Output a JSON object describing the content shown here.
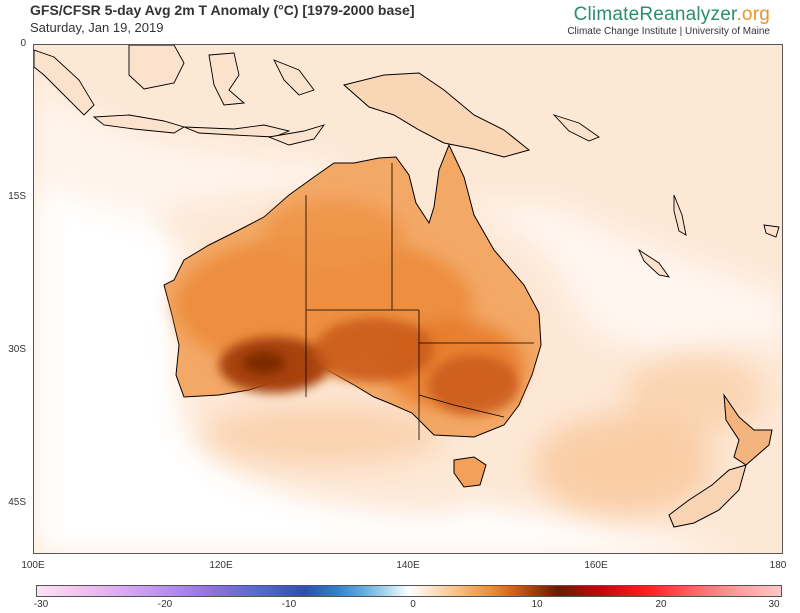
{
  "header": {
    "title": "GFS/CFSR 5-day Avg 2m T Anomaly (°C) [1979-2000 base]",
    "date": "Saturday, Jan 19, 2019"
  },
  "brand": {
    "name_part1": "Climate",
    "name_part2": "Reanalyzer",
    "name_part3": ".org",
    "subtitle": "Climate Change Institute | University of Maine"
  },
  "map": {
    "lat_labels": [
      "0",
      "15S",
      "30S",
      "45S"
    ],
    "lon_labels": [
      "100E",
      "120E",
      "140E",
      "160E",
      "180"
    ]
  },
  "colorbar": {
    "tick_labels": [
      "-30",
      "-20",
      "-10",
      "0",
      "10",
      "20",
      "30"
    ],
    "range": [
      -30,
      30
    ]
  },
  "colors": {
    "ocean_base": "#fde8d6",
    "cool_anomaly": "#ffffff",
    "warm_light": "#f8c496",
    "warm_medium": "#ef8f3e",
    "warm_strong": "#d86a1a",
    "warm_peak": "#9a3805"
  }
}
